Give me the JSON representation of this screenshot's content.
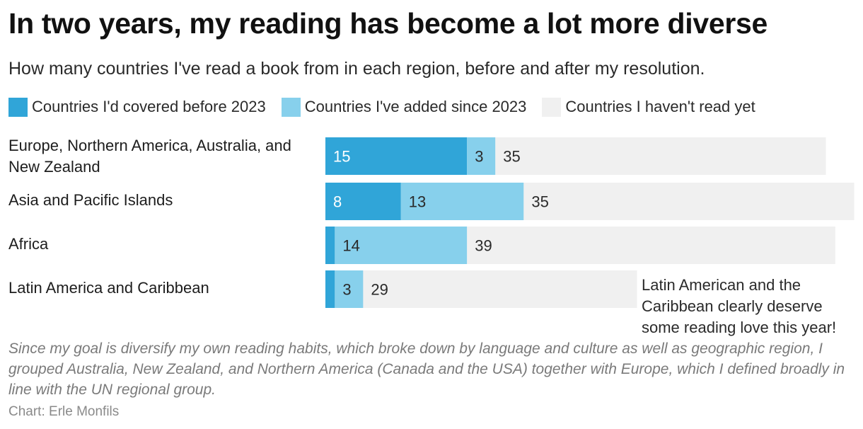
{
  "title": "In two years, my reading has become a lot more diverse",
  "subtitle": "How many countries I've read a book from in each region, before and after my resolution.",
  "legend": [
    {
      "label": "Countries I'd covered before 2023",
      "color": "#30a5d8"
    },
    {
      "label": "Countries I've added since 2023",
      "color": "#87d0ec"
    },
    {
      "label": "Countries I haven't read yet",
      "color": "#f0f0f0"
    }
  ],
  "chart_data": {
    "type": "bar",
    "orientation": "horizontal",
    "stacked": true,
    "categories": [
      "Europe, Northern America, Australia, and New Zealand",
      "Asia and Pacific Islands",
      "Africa",
      "Latin America and Caribbean"
    ],
    "series": [
      {
        "name": "Countries I'd covered before 2023",
        "color": "#30a5d8",
        "values": [
          15,
          8,
          1,
          1
        ],
        "labels": [
          "15",
          "8",
          "",
          ""
        ]
      },
      {
        "name": "Countries I've added since 2023",
        "color": "#87d0ec",
        "values": [
          3,
          13,
          14,
          3
        ],
        "labels": [
          "3",
          "13",
          "14",
          "3"
        ]
      },
      {
        "name": "Countries I haven't read yet",
        "color": "#f0f0f0",
        "values": [
          35,
          35,
          39,
          29
        ],
        "labels": [
          "35",
          "35",
          "39",
          "29"
        ]
      }
    ],
    "grid": false,
    "legend_position": "top"
  },
  "annotation": "Latin American and the Caribbean clearly deserve some reading love this year!",
  "note": "Since my goal is diversify my own reading habits, which broke down by language and culture as well as geographic region, I grouped Australia, New Zealand, and Northern America (Canada and the USA) together with Europe, which I defined broadly in line with the UN regional group.",
  "source": "Chart: Erle Monfils"
}
